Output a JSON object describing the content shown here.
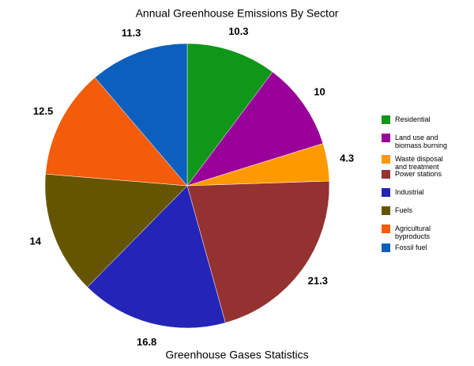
{
  "chart_data": {
    "type": "pie",
    "title": "Annual Greenhouse Emissions By Sector",
    "subtitle": "Greenhouse Gases Statistics",
    "categories": [
      "Residential",
      "Land use and biomass burning",
      "Waste disposal and treatment",
      "Power stations",
      "Industrial",
      "Fuels",
      "Agricultural byproducts",
      "Fossil fuel"
    ],
    "values": [
      10.3,
      10,
      4.3,
      21.3,
      16.8,
      14,
      12.5,
      11.3
    ],
    "colors": [
      "#109618",
      "#990099",
      "#ff9900",
      "#943131",
      "#2424b8",
      "#665500",
      "#f25c0a",
      "#0d5fbd"
    ],
    "legend": "right"
  }
}
